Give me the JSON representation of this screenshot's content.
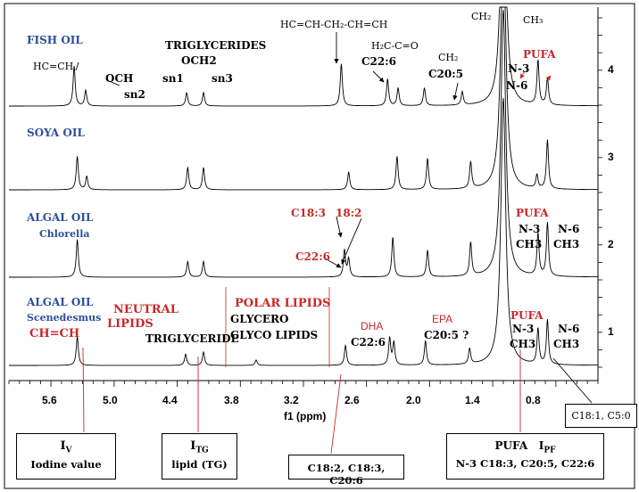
{
  "chart_data": {
    "type": "line",
    "title": "",
    "xlabel": "f1 (ppm)",
    "ylabel": "",
    "x_reversed": true,
    "xlim": [
      6.0,
      0.4
    ],
    "x_ticks": [
      "5.6",
      "5.0",
      "4.4",
      "3.8",
      "3.2",
      "2.6",
      "2.0",
      "1.4",
      "0.8"
    ],
    "right_ticks": [
      "4",
      "3",
      "2",
      "1"
    ],
    "series": [
      {
        "name": "FISH OIL",
        "index": 4,
        "peaks": [
          {
            "ppm": 5.38,
            "h": 0.9
          },
          {
            "ppm": 5.27,
            "h": 0.35
          },
          {
            "ppm": 4.31,
            "h": 0.3
          },
          {
            "ppm": 4.15,
            "h": 0.3
          },
          {
            "ppm": 2.84,
            "h": 0.95
          },
          {
            "ppm": 2.4,
            "h": 0.6
          },
          {
            "ppm": 2.3,
            "h": 0.4
          },
          {
            "ppm": 2.05,
            "h": 0.4
          },
          {
            "ppm": 1.69,
            "h": 0.3
          },
          {
            "ppm": 1.3,
            "h": 6
          },
          {
            "ppm": 0.97,
            "h": 1.0
          },
          {
            "ppm": 0.88,
            "h": 0.6
          }
        ]
      },
      {
        "name": "SOYA OIL",
        "index": 3,
        "peaks": [
          {
            "ppm": 5.35,
            "h": 0.75
          },
          {
            "ppm": 5.26,
            "h": 0.3
          },
          {
            "ppm": 4.3,
            "h": 0.5
          },
          {
            "ppm": 4.15,
            "h": 0.5
          },
          {
            "ppm": 2.77,
            "h": 0.4
          },
          {
            "ppm": 2.31,
            "h": 0.75
          },
          {
            "ppm": 2.02,
            "h": 0.7
          },
          {
            "ppm": 1.61,
            "h": 0.6
          },
          {
            "ppm": 1.3,
            "h": 6
          },
          {
            "ppm": 0.98,
            "h": 0.3
          },
          {
            "ppm": 0.88,
            "h": 1.1
          }
        ]
      },
      {
        "name": "ALGAL OIL Chlorella",
        "index": 2,
        "peaks": [
          {
            "ppm": 5.35,
            "h": 0.85
          },
          {
            "ppm": 4.3,
            "h": 0.35
          },
          {
            "ppm": 4.15,
            "h": 0.35
          },
          {
            "ppm": 2.81,
            "h": 0.6
          },
          {
            "ppm": 2.77,
            "h": 0.4
          },
          {
            "ppm": 2.35,
            "h": 0.9
          },
          {
            "ppm": 2.02,
            "h": 0.6
          },
          {
            "ppm": 1.61,
            "h": 0.75
          },
          {
            "ppm": 1.3,
            "h": 6
          },
          {
            "ppm": 0.97,
            "h": 0.95
          },
          {
            "ppm": 0.88,
            "h": 1.2
          }
        ]
      },
      {
        "name": "ALGAL OIL Scenedesmus",
        "index": 1,
        "peaks": [
          {
            "ppm": 5.35,
            "h": 0.65
          },
          {
            "ppm": 4.32,
            "h": 0.25
          },
          {
            "ppm": 4.15,
            "h": 0.3
          },
          {
            "ppm": 3.65,
            "h": 0.12
          },
          {
            "ppm": 2.8,
            "h": 0.45
          },
          {
            "ppm": 2.38,
            "h": 0.6
          },
          {
            "ppm": 2.34,
            "h": 0.5
          },
          {
            "ppm": 2.04,
            "h": 0.55
          },
          {
            "ppm": 1.62,
            "h": 0.35
          },
          {
            "ppm": 1.3,
            "h": 6
          },
          {
            "ppm": 0.97,
            "h": 0.8
          },
          {
            "ppm": 0.88,
            "h": 1.0
          }
        ]
      }
    ]
  },
  "labels": {
    "fish_oil": "FISH OIL",
    "soya_oil": "SOYA OIL",
    "algal_oil_1": "ALGAL OIL",
    "chlorella": "Chlorella",
    "algal_oil_2": "ALGAL OIL",
    "scenedesmus": "Scenedesmus",
    "hc_ch_top": "HC=CH",
    "och": "OCH",
    "sn2": "sn2",
    "sn1": "sn1",
    "triglycerides": "TRIGLYCERIDES",
    "och2": "OCH2",
    "sn3": "sn3",
    "hc_chain": "HC=CH-CH₂-CH=CH",
    "h2c_co": "H₂C-C=O",
    "c22_6_top": "C22:6",
    "ch2_a": "CH₂",
    "c20_5_top": "C20:5",
    "ch2_b": "CH₂",
    "ch3_top": "CH₃",
    "pufa_top": "PUFA",
    "n3_top": "N-3",
    "n6_top": "N-6",
    "c18_3": "C18:3",
    "c18_2": "18:2",
    "c22_6_mid": "C22:6",
    "pufa_mid": "PUFA",
    "n3_mid": "N-3",
    "ch3_mid_a": "CH3",
    "n6_mid": "N-6",
    "ch3_mid_b": "CH3",
    "ch_ch_red": "CH=CH",
    "neutral": "NEUTRAL",
    "lipids": "LIPIDS",
    "triglyceride": "TRIGLYCERIDE",
    "polar_lipids": "POLAR LIPIDS",
    "glycero": "GLYCERO",
    "glyco_lipids": "GLYCO LIPIDS",
    "dha": "DHA",
    "c22_6_bot": "C22:6",
    "epa": "EPA",
    "c20_5_q": "C20:5 ?",
    "pufa_bot": "PUFA",
    "n3_bot": "N-3",
    "ch3_bot_a": "CH3",
    "n6_bot": "N-6",
    "ch3_bot_b": "CH3"
  },
  "boxes": {
    "iv_sym": "I",
    "iv_sub": "V",
    "iv_text": "Iodine  value",
    "itg_sym": "I",
    "itg_sub": "TG",
    "itg_text": "lipid (TG)",
    "fatty": "C18:2, C18:3, C20:6",
    "pufa_title": "PUFA",
    "ipf_sym": "I",
    "ipf_sub": "PF",
    "pufa_list": "N-3 C18:3, C20:5, C22:6",
    "c18_1": "C18:1, C5:0"
  }
}
